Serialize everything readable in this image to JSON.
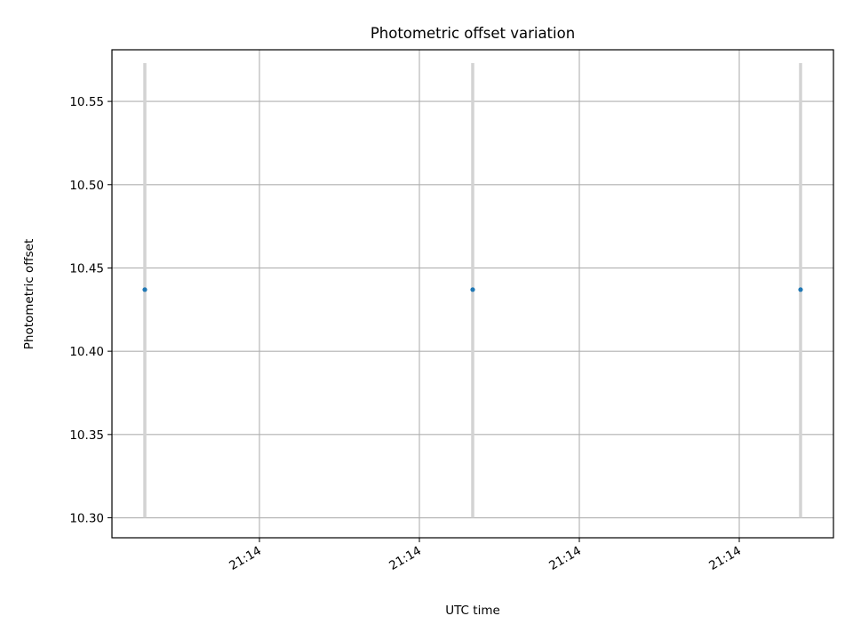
{
  "chart_data": {
    "type": "scatter",
    "title": "Photometric offset variation",
    "xlabel": "UTC time",
    "ylabel": "Photometric offset",
    "x_tick_labels": [
      "21:14",
      "21:14",
      "21:14",
      "21:14"
    ],
    "y_ticks": [
      10.3,
      10.35,
      10.4,
      10.45,
      10.5,
      10.55
    ],
    "ylim": [
      10.288,
      10.581
    ],
    "grid": true,
    "series": [
      {
        "points": [
          {
            "y": 10.437,
            "yerr_low": 10.3,
            "yerr_high": 10.573
          },
          {
            "y": 10.437,
            "yerr_low": 10.3,
            "yerr_high": 10.573
          },
          {
            "y": 10.437,
            "yerr_low": 10.3,
            "yerr_high": 10.573
          }
        ],
        "marker_color": "#1f77b4",
        "errorbar_color": "#d3d3d3"
      }
    ]
  }
}
